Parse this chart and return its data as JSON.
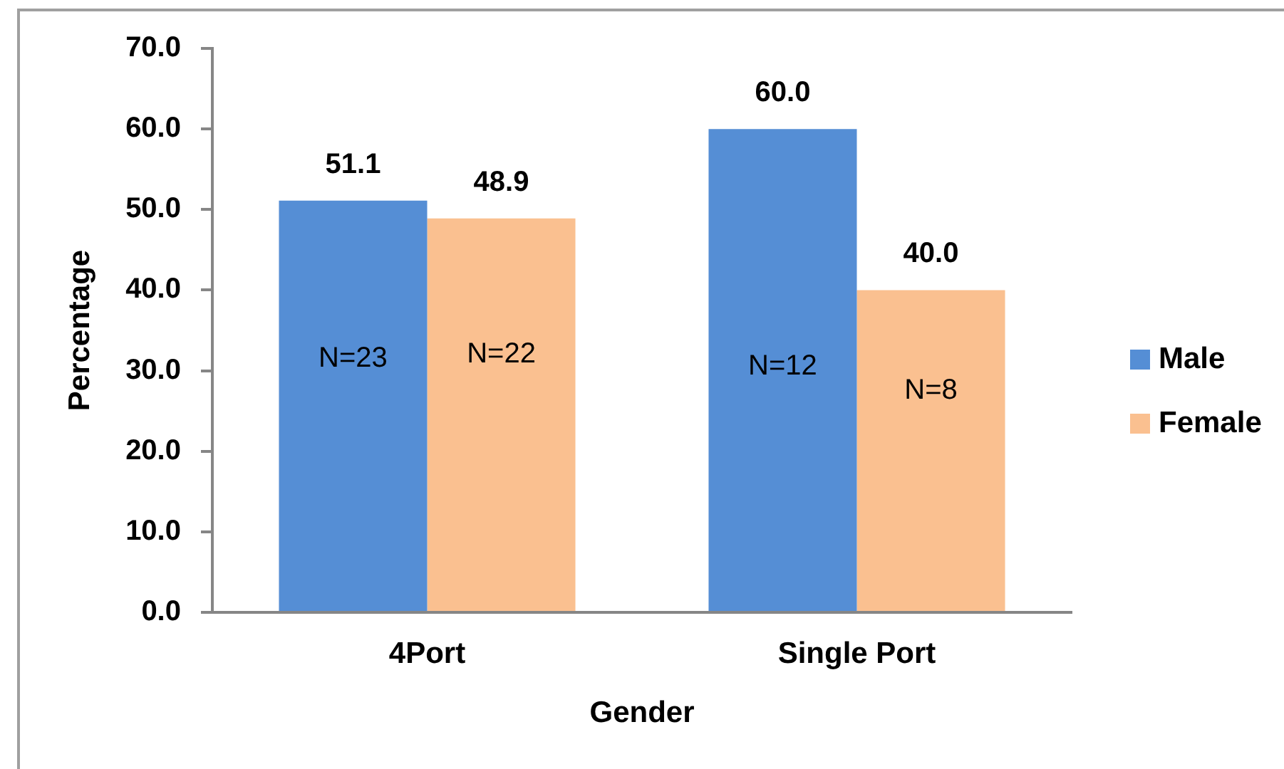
{
  "chart_data": {
    "type": "bar",
    "categories": [
      "4Port",
      "Single Port"
    ],
    "series": [
      {
        "name": "Male",
        "color": "#558ed5",
        "values": [
          51.1,
          60.0
        ],
        "value_labels": [
          "51.1",
          "60.0"
        ]
      },
      {
        "name": "Female",
        "color": "#fac090",
        "values": [
          48.9,
          40.0
        ],
        "value_labels": [
          "48.9",
          "40.0"
        ]
      }
    ],
    "xlabel": "Gender",
    "ylabel": "Percentage",
    "ylim": [
      0,
      70
    ],
    "yticks": [
      {
        "value": 0,
        "label": "0.0"
      },
      {
        "value": 10,
        "label": "10.0"
      },
      {
        "value": 20,
        "label": "20.0"
      },
      {
        "value": 30,
        "label": "30.0"
      },
      {
        "value": 40,
        "label": "40.0"
      },
      {
        "value": 50,
        "label": "50.0"
      },
      {
        "value": 60,
        "label": "60.0"
      },
      {
        "value": 70,
        "label": "70.0"
      }
    ],
    "annotations": [
      {
        "text": "N=23",
        "x": "4Port",
        "y": 31.5
      },
      {
        "text": "N=22",
        "x": "4Port",
        "y": 32
      },
      {
        "text": "N=12",
        "x": "Single Port",
        "y": 30.5
      },
      {
        "text": "N=8",
        "x": "Single Port",
        "y": 27.5
      }
    ],
    "grid": false,
    "legend": "right"
  }
}
